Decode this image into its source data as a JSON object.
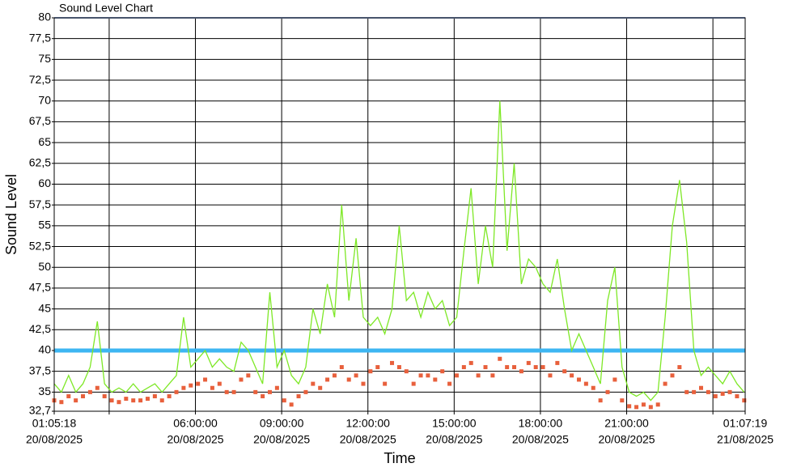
{
  "chart_data": {
    "type": "line",
    "title": "Sound Level Chart",
    "y_label": "Sound Level",
    "x_label": "Time",
    "xlim": [
      "2025-08-20T01:05:18",
      "2025-08-21T01:07:19"
    ],
    "xticks": [
      {
        "value": "2025-08-20T01:05:18",
        "label": [
          "01:05:18",
          "20/08/2025"
        ]
      },
      {
        "value": "2025-08-20T03:00:00",
        "label": null
      },
      {
        "value": "2025-08-20T06:00:00",
        "label": [
          "06:00:00",
          "20/08/2025"
        ]
      },
      {
        "value": "2025-08-20T09:00:00",
        "label": [
          "09:00:00",
          "20/08/2025"
        ]
      },
      {
        "value": "2025-08-20T12:00:00",
        "label": [
          "12:00:00",
          "20/08/2025"
        ]
      },
      {
        "value": "2025-08-20T15:00:00",
        "label": [
          "15:00:00",
          "20/08/2025"
        ]
      },
      {
        "value": "2025-08-20T18:00:00",
        "label": [
          "18:00:00",
          "20/08/2025"
        ]
      },
      {
        "value": "2025-08-20T21:00:00",
        "label": [
          "21:00:00",
          "20/08/2025"
        ]
      },
      {
        "value": "2025-08-21T00:00:00",
        "label": null
      },
      {
        "value": "2025-08-21T01:07:19",
        "label": [
          "01:07:19",
          "21/08/2025"
        ]
      }
    ],
    "ylim": [
      32.7,
      80
    ],
    "yticks": [
      {
        "value": 32.7,
        "label": "32,7"
      },
      35,
      {
        "value": 37.5,
        "label": "37,5"
      },
      40,
      {
        "value": 42.5,
        "label": "42,5"
      },
      45,
      {
        "value": 47.5,
        "label": "47,5"
      },
      50,
      {
        "value": 52.5,
        "label": "52,5"
      },
      55,
      {
        "value": 57.5,
        "label": "57,5"
      },
      60,
      {
        "value": 62.5,
        "label": "62,5"
      },
      65,
      {
        "value": 67.5,
        "label": "67,5"
      },
      70,
      {
        "value": 72.5,
        "label": "72,5"
      },
      75,
      {
        "value": 77.5,
        "label": "77,5"
      },
      80
    ],
    "grid": true,
    "reference_lines": [
      {
        "value": 40,
        "color": "#3db6f2"
      },
      {
        "value": 80,
        "color": "#8fa8d8"
      }
    ],
    "x": [
      "2025-08-20T01:05:18",
      "2025-08-20T01:20:18",
      "2025-08-20T01:35:18",
      "2025-08-20T01:50:18",
      "2025-08-20T02:05:18",
      "2025-08-20T02:20:18",
      "2025-08-20T02:35:18",
      "2025-08-20T02:50:18",
      "2025-08-20T03:05:18",
      "2025-08-20T03:20:18",
      "2025-08-20T03:35:18",
      "2025-08-20T03:50:18",
      "2025-08-20T04:05:18",
      "2025-08-20T04:20:18",
      "2025-08-20T04:35:18",
      "2025-08-20T04:50:18",
      "2025-08-20T05:05:18",
      "2025-08-20T05:20:18",
      "2025-08-20T05:35:18",
      "2025-08-20T05:50:18",
      "2025-08-20T06:05:18",
      "2025-08-20T06:20:18",
      "2025-08-20T06:35:18",
      "2025-08-20T06:50:18",
      "2025-08-20T07:05:18",
      "2025-08-20T07:20:18",
      "2025-08-20T07:35:18",
      "2025-08-20T07:50:18",
      "2025-08-20T08:05:18",
      "2025-08-20T08:20:18",
      "2025-08-20T08:35:18",
      "2025-08-20T08:50:18",
      "2025-08-20T09:05:18",
      "2025-08-20T09:20:18",
      "2025-08-20T09:35:18",
      "2025-08-20T09:50:18",
      "2025-08-20T10:05:18",
      "2025-08-20T10:20:18",
      "2025-08-20T10:35:18",
      "2025-08-20T10:50:18",
      "2025-08-20T11:05:18",
      "2025-08-20T11:20:18",
      "2025-08-20T11:35:18",
      "2025-08-20T11:50:18",
      "2025-08-20T12:05:18",
      "2025-08-20T12:20:18",
      "2025-08-20T12:35:18",
      "2025-08-20T12:50:18",
      "2025-08-20T13:05:18",
      "2025-08-20T13:20:18",
      "2025-08-20T13:35:18",
      "2025-08-20T13:50:18",
      "2025-08-20T14:05:18",
      "2025-08-20T14:20:18",
      "2025-08-20T14:35:18",
      "2025-08-20T14:50:18",
      "2025-08-20T15:05:18",
      "2025-08-20T15:20:18",
      "2025-08-20T15:35:18",
      "2025-08-20T15:50:18",
      "2025-08-20T16:05:18",
      "2025-08-20T16:20:18",
      "2025-08-20T16:35:18",
      "2025-08-20T16:50:18",
      "2025-08-20T17:05:18",
      "2025-08-20T17:20:18",
      "2025-08-20T17:35:18",
      "2025-08-20T17:50:18",
      "2025-08-20T18:05:18",
      "2025-08-20T18:20:18",
      "2025-08-20T18:35:18",
      "2025-08-20T18:50:18",
      "2025-08-20T19:05:18",
      "2025-08-20T19:20:18",
      "2025-08-20T19:35:18",
      "2025-08-20T19:50:18",
      "2025-08-20T20:05:18",
      "2025-08-20T20:20:18",
      "2025-08-20T20:35:18",
      "2025-08-20T20:50:18",
      "2025-08-20T21:05:18",
      "2025-08-20T21:20:18",
      "2025-08-20T21:35:18",
      "2025-08-20T21:50:18",
      "2025-08-20T22:05:18",
      "2025-08-20T22:20:18",
      "2025-08-20T22:35:18",
      "2025-08-20T22:50:18",
      "2025-08-20T23:05:18",
      "2025-08-20T23:20:18",
      "2025-08-20T23:35:18",
      "2025-08-20T23:50:18",
      "2025-08-21T00:05:18",
      "2025-08-21T00:20:18",
      "2025-08-21T00:35:18",
      "2025-08-21T00:50:18",
      "2025-08-21T01:05:18"
    ],
    "series": [
      {
        "color": "#7ee826",
        "style": "line",
        "values": [
          36,
          35,
          37,
          35,
          36,
          38,
          43.5,
          36,
          35,
          35.5,
          35,
          36,
          35,
          35.5,
          36,
          35,
          36,
          37,
          44,
          38,
          39,
          40,
          38,
          39,
          38,
          37.5,
          41,
          40,
          38,
          36,
          47,
          38,
          40,
          37,
          36,
          38,
          45,
          42,
          48,
          44,
          57.5,
          46,
          53.5,
          44,
          43,
          44,
          42,
          45,
          55,
          46,
          47,
          44,
          47,
          45,
          46,
          43,
          44,
          52,
          59.5,
          48,
          55,
          50,
          70,
          52,
          62.5,
          48,
          51,
          50,
          48,
          47,
          51,
          45,
          40,
          42,
          40,
          38,
          36,
          46,
          50,
          38,
          35,
          34.5,
          35,
          34,
          35,
          44,
          55,
          60.5,
          53,
          40,
          37,
          38,
          37,
          36,
          37.5,
          36,
          35
        ]
      },
      {
        "color": "#e8603c",
        "style": "markers",
        "values": [
          34,
          33.8,
          34.5,
          34,
          34.5,
          35,
          35.5,
          34.5,
          34,
          33.8,
          34.2,
          34,
          34,
          34.2,
          34.5,
          34,
          34.5,
          35,
          35.5,
          35.8,
          36,
          36.5,
          35.5,
          36,
          35,
          35,
          36.5,
          37,
          35,
          34.5,
          35,
          35.5,
          34,
          33.5,
          34.5,
          35,
          36,
          35.5,
          36.5,
          37,
          38,
          36.5,
          37,
          36,
          37.5,
          38,
          36,
          38.5,
          38,
          37.5,
          36,
          37,
          37,
          36.5,
          37.5,
          36,
          37,
          38,
          38.5,
          37,
          38,
          37,
          39,
          38,
          38,
          37.5,
          38.5,
          38,
          38,
          37,
          38.5,
          37.5,
          37,
          36.5,
          36,
          35.5,
          34,
          35,
          36.5,
          34,
          33.3,
          33.2,
          33.5,
          33.2,
          33.5,
          36,
          37,
          38,
          35,
          35,
          35.5,
          35,
          34.5,
          34.8,
          35,
          34.5,
          34
        ]
      }
    ]
  }
}
